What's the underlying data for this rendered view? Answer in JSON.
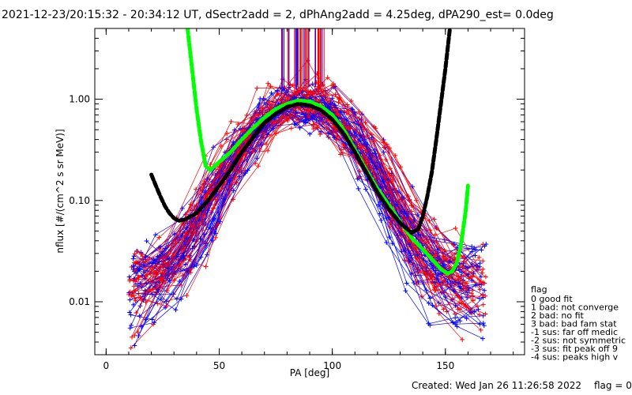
{
  "chart_data": {
    "type": "line",
    "title": "2021-12-23/20:15:32 - 20:34:12 UT, dSectr2add = 2, dPhAng2add = 4.25deg, dPA290_est=    0.0deg",
    "xlabel": "PA [deg]",
    "ylabel": "nflux [#/(cm^2 s sr MeV)]",
    "xlim": [
      -5,
      185
    ],
    "ylim": [
      0.003,
      5.0
    ],
    "yscale": "log",
    "x_ticks": [
      0,
      50,
      100,
      150
    ],
    "x_tick_labels": [
      "0",
      "50",
      "100",
      "150"
    ],
    "y_ticks": [
      0.01,
      0.1,
      1.0
    ],
    "y_tick_labels": [
      "0.01",
      "0.10",
      "1.00"
    ],
    "colors": {
      "blue": "#0000ff",
      "red": "#ff0000",
      "green": "#00ff00",
      "black": "#000000"
    },
    "series": [
      {
        "kind": "fit-curve",
        "color": "#00ff00",
        "points": [
          [
            36,
            5.0
          ],
          [
            38,
            2.0
          ],
          [
            40,
            0.8
          ],
          [
            42,
            0.38
          ],
          [
            44,
            0.22
          ],
          [
            46,
            0.2
          ],
          [
            50,
            0.24
          ],
          [
            55,
            0.3
          ],
          [
            60,
            0.4
          ],
          [
            65,
            0.52
          ],
          [
            70,
            0.66
          ],
          [
            75,
            0.8
          ],
          [
            80,
            0.9
          ],
          [
            85,
            0.97
          ],
          [
            90,
            0.95
          ],
          [
            95,
            0.85
          ],
          [
            100,
            0.7
          ],
          [
            105,
            0.5
          ],
          [
            110,
            0.32
          ],
          [
            115,
            0.2
          ],
          [
            120,
            0.13
          ],
          [
            125,
            0.09
          ],
          [
            130,
            0.062
          ],
          [
            135,
            0.043
          ],
          [
            140,
            0.033
          ],
          [
            145,
            0.025
          ],
          [
            148,
            0.021
          ],
          [
            151,
            0.019
          ],
          [
            153,
            0.02
          ],
          [
            155,
            0.024
          ],
          [
            157,
            0.038
          ],
          [
            159,
            0.08
          ],
          [
            160,
            0.14
          ]
        ]
      },
      {
        "kind": "fit-curve",
        "color": "#000000",
        "points": [
          [
            20,
            0.18
          ],
          [
            22,
            0.14
          ],
          [
            24,
            0.11
          ],
          [
            26,
            0.088
          ],
          [
            28,
            0.075
          ],
          [
            30,
            0.067
          ],
          [
            32,
            0.063
          ],
          [
            35,
            0.065
          ],
          [
            40,
            0.075
          ],
          [
            45,
            0.1
          ],
          [
            50,
            0.14
          ],
          [
            55,
            0.2
          ],
          [
            60,
            0.3
          ],
          [
            65,
            0.42
          ],
          [
            70,
            0.58
          ],
          [
            75,
            0.72
          ],
          [
            80,
            0.84
          ],
          [
            85,
            0.9
          ],
          [
            90,
            0.87
          ],
          [
            95,
            0.78
          ],
          [
            100,
            0.63
          ],
          [
            105,
            0.46
          ],
          [
            110,
            0.3
          ],
          [
            115,
            0.19
          ],
          [
            120,
            0.12
          ],
          [
            125,
            0.082
          ],
          [
            130,
            0.06
          ],
          [
            135,
            0.048
          ],
          [
            138,
            0.052
          ],
          [
            140,
            0.07
          ],
          [
            142,
            0.11
          ],
          [
            144,
            0.19
          ],
          [
            146,
            0.4
          ],
          [
            148,
            0.9
          ],
          [
            150,
            2.0
          ],
          [
            152,
            5.0
          ]
        ]
      }
    ],
    "legend": {
      "position": "bottom-right",
      "title": "flag",
      "entries": [
        " 0 good fit",
        " 1 bad: not converge",
        " 2 bad: no fit",
        " 3 bad: bad fam stat",
        "-1 sus: far off medic",
        "-2 sus: not symmetric",
        "-3 sus: fit peak off 9",
        "-4 sus: peaks high v"
      ]
    },
    "footer": "Created: Wed Jan 26 11:26:58 2022",
    "footer_flag": "flag = 0"
  }
}
